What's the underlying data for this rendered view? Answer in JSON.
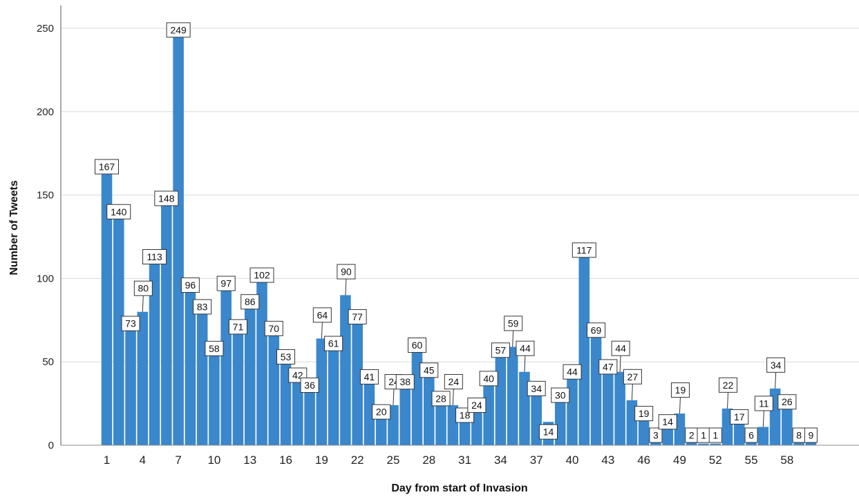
{
  "chart_data": {
    "type": "bar",
    "title": "",
    "xlabel": "Day from start of Invasion",
    "ylabel": "Number of Tweets",
    "ylim": [
      0,
      265
    ],
    "yticks": [
      0,
      50,
      100,
      150,
      200,
      250
    ],
    "xtick_labels": [
      "1",
      "4",
      "7",
      "10",
      "13",
      "16",
      "19",
      "22",
      "25",
      "28",
      "31",
      "34",
      "37",
      "40",
      "43",
      "46",
      "49",
      "52",
      "55",
      "58"
    ],
    "xtick_days": [
      1,
      4,
      7,
      10,
      13,
      16,
      19,
      22,
      25,
      28,
      31,
      34,
      37,
      40,
      43,
      46,
      49,
      52,
      55,
      58
    ],
    "grid": true,
    "bar_color": "#3a87cc",
    "categories": [
      1,
      2,
      3,
      4,
      5,
      6,
      7,
      8,
      9,
      10,
      11,
      12,
      13,
      14,
      15,
      16,
      17,
      18,
      19,
      20,
      21,
      22,
      23,
      24,
      25,
      26,
      27,
      28,
      29,
      30,
      31,
      32,
      33,
      34,
      35,
      36,
      37,
      38,
      39,
      40,
      41,
      42,
      43,
      44,
      45,
      46,
      47,
      48,
      49,
      50,
      51,
      52,
      53,
      54,
      55,
      56,
      57,
      58,
      59,
      60
    ],
    "values": [
      167,
      140,
      73,
      80,
      113,
      148,
      249,
      96,
      83,
      58,
      97,
      71,
      86,
      102,
      70,
      53,
      42,
      36,
      64,
      61,
      90,
      77,
      41,
      20,
      24,
      38,
      60,
      45,
      28,
      24,
      18,
      24,
      40,
      57,
      59,
      44,
      34,
      14,
      30,
      44,
      117,
      69,
      47,
      44,
      27,
      19,
      3,
      14,
      19,
      2,
      1,
      1,
      22,
      17,
      6,
      11,
      34,
      26,
      8,
      9
    ]
  }
}
